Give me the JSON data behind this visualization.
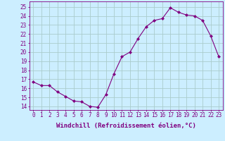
{
  "x": [
    0,
    1,
    2,
    3,
    4,
    5,
    6,
    7,
    8,
    9,
    10,
    11,
    12,
    13,
    14,
    15,
    16,
    17,
    18,
    19,
    20,
    21,
    22,
    23
  ],
  "y": [
    16.7,
    16.3,
    16.3,
    15.6,
    15.1,
    14.6,
    14.5,
    14.0,
    13.9,
    15.3,
    17.6,
    19.5,
    20.0,
    21.5,
    22.8,
    23.5,
    23.7,
    24.9,
    24.4,
    24.1,
    24.0,
    23.5,
    21.8,
    19.5
  ],
  "line_color": "#800080",
  "marker": "D",
  "marker_size": 2,
  "bg_color": "#cceeff",
  "grid_color": "#aacccc",
  "xlabel": "Windchill (Refroidissement éolien,°C)",
  "xlabel_color": "#800080",
  "ylabel_ticks": [
    14,
    15,
    16,
    17,
    18,
    19,
    20,
    21,
    22,
    23,
    24,
    25
  ],
  "xlim": [
    -0.5,
    23.5
  ],
  "ylim": [
    13.6,
    25.6
  ],
  "xtick_labels": [
    "0",
    "1",
    "2",
    "3",
    "4",
    "5",
    "6",
    "7",
    "8",
    "9",
    "10",
    "11",
    "12",
    "13",
    "14",
    "15",
    "16",
    "17",
    "18",
    "19",
    "20",
    "21",
    "22",
    "23"
  ],
  "tick_color": "#800080",
  "spine_color": "#800080",
  "tick_fontsize": 5.5,
  "xlabel_fontsize": 6.5
}
